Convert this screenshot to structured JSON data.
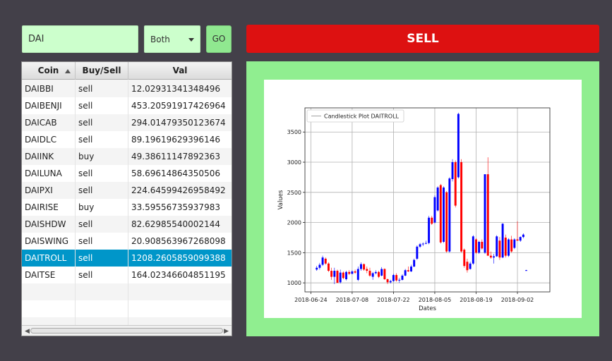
{
  "search": {
    "value": "DAI"
  },
  "mode_select": {
    "value": "Both"
  },
  "go_button": {
    "label": "GO"
  },
  "signal_banner": {
    "label": "SELL",
    "color": "#dd1111"
  },
  "table": {
    "columns": [
      "Coin",
      "Buy/Sell",
      "Val"
    ],
    "sort_column": "Coin",
    "sort_direction": "ascending",
    "selected_row": 10,
    "rows": [
      {
        "coin": "DAIBBI",
        "side": "sell",
        "val": "12.02931341348496"
      },
      {
        "coin": "DAIBENJI",
        "side": "sell",
        "val": "453.20591917426964"
      },
      {
        "coin": "DAICAB",
        "side": "sell",
        "val": "294.01479350123674"
      },
      {
        "coin": "DAIDLC",
        "side": "sell",
        "val": "89.19619629396146"
      },
      {
        "coin": "DAIINK",
        "side": "buy",
        "val": "49.38611147892363"
      },
      {
        "coin": "DAILUNA",
        "side": "sell",
        "val": "58.69614864350506"
      },
      {
        "coin": "DAIPXI",
        "side": "sell",
        "val": "224.64599426958492"
      },
      {
        "coin": "DAIRISE",
        "side": "buy",
        "val": "33.59556735937983"
      },
      {
        "coin": "DAISHDW",
        "side": "sell",
        "val": "82.62985540002144"
      },
      {
        "coin": "DAISWING",
        "side": "sell",
        "val": "20.908563967268098"
      },
      {
        "coin": "DAITROLL",
        "side": "sell",
        "val": "1208.2605859099388"
      },
      {
        "coin": "DAITSE",
        "side": "sell",
        "val": "164.02346604851195"
      }
    ]
  },
  "chart_data": {
    "type": "candlestick",
    "legend": "Candlestick Plot DAITROLL",
    "legend_position": "top-left",
    "xlabel": "Dates",
    "ylabel": "Values",
    "grid": true,
    "up_color": "#0000ff",
    "down_color": "#ff0000",
    "x_ticks": [
      "2018-06-24",
      "2018-07-08",
      "2018-07-22",
      "2018-08-05",
      "2018-08-19",
      "2018-09-02"
    ],
    "y_ticks": [
      1000,
      1500,
      2000,
      2500,
      3000,
      3500
    ],
    "xlim": [
      "2018-06-22",
      "2018-09-13"
    ],
    "ylim": [
      850,
      3900
    ],
    "candles": [
      {
        "date": "2018-06-26",
        "open": 1220,
        "high": 1280,
        "low": 1200,
        "close": 1250
      },
      {
        "date": "2018-06-27",
        "open": 1250,
        "high": 1330,
        "low": 1220,
        "close": 1300
      },
      {
        "date": "2018-06-28",
        "open": 1300,
        "high": 1450,
        "low": 1280,
        "close": 1420
      },
      {
        "date": "2018-06-29",
        "open": 1400,
        "high": 1420,
        "low": 1300,
        "close": 1320
      },
      {
        "date": "2018-06-30",
        "open": 1320,
        "high": 1340,
        "low": 1180,
        "close": 1200
      },
      {
        "date": "2018-07-01",
        "open": 1200,
        "high": 1250,
        "low": 1050,
        "close": 1100
      },
      {
        "date": "2018-07-02",
        "open": 1100,
        "high": 1250,
        "low": 980,
        "close": 1200
      },
      {
        "date": "2018-07-03",
        "open": 1200,
        "high": 1220,
        "low": 1000,
        "close": 1000
      },
      {
        "date": "2018-07-04",
        "open": 1010,
        "high": 1220,
        "low": 990,
        "close": 1170
      },
      {
        "date": "2018-07-05",
        "open": 1170,
        "high": 1190,
        "low": 1060,
        "close": 1080
      },
      {
        "date": "2018-07-06",
        "open": 1060,
        "high": 1200,
        "low": 1040,
        "close": 1180
      },
      {
        "date": "2018-07-07",
        "open": 1180,
        "high": 1210,
        "low": 1130,
        "close": 1150
      },
      {
        "date": "2018-07-08",
        "open": 1150,
        "high": 1210,
        "low": 1140,
        "close": 1190
      },
      {
        "date": "2018-07-09",
        "open": 1190,
        "high": 1220,
        "low": 1150,
        "close": 1170
      },
      {
        "date": "2018-07-10",
        "open": 1050,
        "high": 1270,
        "low": 1030,
        "close": 1230
      },
      {
        "date": "2018-07-11",
        "open": 1230,
        "high": 1340,
        "low": 1200,
        "close": 1310
      },
      {
        "date": "2018-07-12",
        "open": 1310,
        "high": 1320,
        "low": 1200,
        "close": 1220
      },
      {
        "date": "2018-07-13",
        "open": 1230,
        "high": 1270,
        "low": 1160,
        "close": 1200
      },
      {
        "date": "2018-07-14",
        "open": 1200,
        "high": 1250,
        "low": 1100,
        "close": 1120
      },
      {
        "date": "2018-07-15",
        "open": 1100,
        "high": 1180,
        "low": 1050,
        "close": 1160
      },
      {
        "date": "2018-07-16",
        "open": 1160,
        "high": 1210,
        "low": 1140,
        "close": 1180
      },
      {
        "date": "2018-07-17",
        "open": 1180,
        "high": 1200,
        "low": 1080,
        "close": 1100
      },
      {
        "date": "2018-07-18",
        "open": 1120,
        "high": 1260,
        "low": 1110,
        "close": 1230
      },
      {
        "date": "2018-07-19",
        "open": 1230,
        "high": 1240,
        "low": 1050,
        "close": 1060
      },
      {
        "date": "2018-07-20",
        "open": 1060,
        "high": 1070,
        "low": 980,
        "close": 1010
      },
      {
        "date": "2018-07-21",
        "open": 1010,
        "high": 1050,
        "low": 990,
        "close": 1030
      },
      {
        "date": "2018-07-22",
        "open": 1030,
        "high": 1150,
        "low": 1020,
        "close": 1130
      },
      {
        "date": "2018-07-23",
        "open": 1130,
        "high": 1160,
        "low": 1020,
        "close": 1040
      },
      {
        "date": "2018-07-24",
        "open": 1040,
        "high": 1080,
        "low": 1000,
        "close": 1050
      },
      {
        "date": "2018-07-25",
        "open": 1050,
        "high": 1140,
        "low": 1040,
        "close": 1120
      },
      {
        "date": "2018-07-26",
        "open": 1120,
        "high": 1230,
        "low": 1110,
        "close": 1210
      },
      {
        "date": "2018-07-27",
        "open": 1210,
        "high": 1270,
        "low": 1180,
        "close": 1190
      },
      {
        "date": "2018-07-28",
        "open": 1190,
        "high": 1300,
        "low": 1180,
        "close": 1270
      },
      {
        "date": "2018-07-29",
        "open": 1270,
        "high": 1400,
        "low": 1260,
        "close": 1380
      },
      {
        "date": "2018-07-30",
        "open": 1400,
        "high": 1620,
        "low": 1380,
        "close": 1600
      },
      {
        "date": "2018-07-31",
        "open": 1600,
        "high": 1660,
        "low": 1580,
        "close": 1640
      },
      {
        "date": "2018-08-01",
        "open": 1640,
        "high": 1670,
        "low": 1610,
        "close": 1650
      },
      {
        "date": "2018-08-02",
        "open": 1650,
        "high": 1700,
        "low": 1640,
        "close": 1660
      },
      {
        "date": "2018-08-03",
        "open": 1660,
        "high": 2110,
        "low": 1640,
        "close": 2080
      },
      {
        "date": "2018-08-04",
        "open": 2080,
        "high": 2110,
        "low": 1960,
        "close": 1980
      },
      {
        "date": "2018-08-05",
        "open": 2000,
        "high": 2450,
        "low": 1980,
        "close": 2420
      },
      {
        "date": "2018-08-06",
        "open": 2200,
        "high": 2600,
        "low": 2180,
        "close": 2580
      },
      {
        "date": "2018-08-07",
        "open": 2620,
        "high": 2640,
        "low": 1650,
        "close": 1670
      },
      {
        "date": "2018-08-08",
        "open": 1680,
        "high": 2600,
        "low": 1660,
        "close": 2580
      },
      {
        "date": "2018-08-09",
        "open": 2500,
        "high": 2520,
        "low": 1500,
        "close": 1520
      },
      {
        "date": "2018-08-10",
        "open": 1520,
        "high": 2750,
        "low": 1500,
        "close": 2730
      },
      {
        "date": "2018-08-11",
        "open": 2720,
        "high": 3050,
        "low": 2680,
        "close": 3000
      },
      {
        "date": "2018-08-12",
        "open": 3000,
        "high": 3030,
        "low": 2250,
        "close": 2280
      },
      {
        "date": "2018-08-13",
        "open": 2750,
        "high": 3820,
        "low": 2730,
        "close": 3800
      },
      {
        "date": "2018-08-14",
        "open": 3000,
        "high": 3050,
        "low": 1500,
        "close": 1520
      },
      {
        "date": "2018-08-15",
        "open": 1550,
        "high": 1570,
        "low": 1250,
        "close": 1280
      },
      {
        "date": "2018-08-16",
        "open": 1350,
        "high": 1400,
        "low": 1170,
        "close": 1210
      },
      {
        "date": "2018-08-17",
        "open": 1230,
        "high": 1350,
        "low": 1220,
        "close": 1320
      },
      {
        "date": "2018-08-18",
        "open": 1320,
        "high": 1790,
        "low": 1300,
        "close": 1770
      },
      {
        "date": "2018-08-19",
        "open": 1720,
        "high": 1740,
        "low": 1480,
        "close": 1500
      },
      {
        "date": "2018-08-20",
        "open": 1500,
        "high": 1700,
        "low": 1480,
        "close": 1680
      },
      {
        "date": "2018-08-21",
        "open": 1680,
        "high": 1720,
        "low": 1550,
        "close": 1570
      },
      {
        "date": "2018-08-22",
        "open": 1500,
        "high": 2800,
        "low": 1480,
        "close": 2800
      },
      {
        "date": "2018-08-23",
        "open": 2800,
        "high": 3080,
        "low": 1450,
        "close": 1450
      },
      {
        "date": "2018-08-24",
        "open": 1450,
        "high": 1520,
        "low": 1400,
        "close": 1420
      },
      {
        "date": "2018-08-25",
        "open": 1420,
        "high": 1480,
        "low": 1320,
        "close": 1440
      },
      {
        "date": "2018-08-26",
        "open": 1440,
        "high": 1790,
        "low": 1430,
        "close": 1770
      },
      {
        "date": "2018-08-27",
        "open": 1700,
        "high": 1760,
        "low": 1380,
        "close": 1420
      },
      {
        "date": "2018-08-28",
        "open": 1420,
        "high": 1990,
        "low": 1410,
        "close": 1980
      },
      {
        "date": "2018-08-29",
        "open": 1750,
        "high": 1800,
        "low": 1420,
        "close": 1450
      },
      {
        "date": "2018-08-30",
        "open": 1450,
        "high": 1740,
        "low": 1430,
        "close": 1720
      },
      {
        "date": "2018-08-31",
        "open": 1720,
        "high": 1780,
        "low": 1500,
        "close": 1520
      },
      {
        "date": "2018-09-01",
        "open": 1580,
        "high": 1740,
        "low": 1560,
        "close": 1720
      },
      {
        "date": "2018-09-02",
        "open": 1720,
        "high": 2020,
        "low": 1700,
        "close": 1700
      },
      {
        "date": "2018-09-03",
        "open": 1700,
        "high": 1770,
        "low": 1680,
        "close": 1760
      },
      {
        "date": "2018-09-04",
        "open": 1760,
        "high": 1820,
        "low": 1740,
        "close": 1800
      },
      {
        "date": "2018-09-05",
        "open": 1210,
        "high": 1215,
        "low": 1205,
        "close": 1210
      }
    ]
  }
}
